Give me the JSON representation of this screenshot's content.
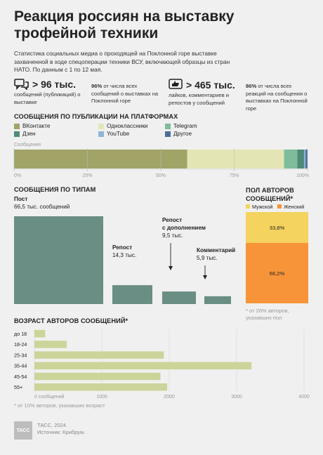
{
  "title": "Реакция россиян на выставку трофейной техники",
  "lead": "Статистика социальных медиа о проходящей на Поклонной горе выставке захваченной в ходе спецоперации техники ВСУ, включающей образцы из стран НАТО. По данным с 1 по 12 мая.",
  "stats": [
    {
      "icon": "chat-bubbles-icon",
      "big": "> 96 тыс.",
      "text": "сообщений (публикаций) о выставке"
    },
    {
      "pct": "96%",
      "text": "от числа всех сообщений о выставках на Поклонной горе"
    },
    {
      "icon": "thumbs-up-icon",
      "big": "> 465 тыс.",
      "text": "лайков, комментариев и репостов у сообщений"
    },
    {
      "pct": "86%",
      "text": "от числа всех реакций на сообщения о выставках на Поклонной горе"
    }
  ],
  "platforms": {
    "heading": "СООБЩЕНИЯ ПО ПУБЛИКАЦИИ НА ПЛАТФОРМАХ",
    "bar_label": "Сообщения",
    "ticks": [
      "0%",
      "25%",
      "50%",
      "75%",
      "100%"
    ]
  },
  "types": {
    "heading": "СООБЩЕНИЯ ПО ТИПАМ"
  },
  "gender": {
    "heading": "ПОЛ АВТОРОВ СООБЩЕНИЙ*",
    "note": "* от 26% авторов, указавших пол"
  },
  "age": {
    "heading": "ВОЗРАСТ АВТОРОВ СООБЩЕНИЙ*",
    "axis_unit": "0 сообщений",
    "note": "* от 10% авторов, указавших возраст"
  },
  "footer": {
    "logo": "ТАСС",
    "line1": "ТАСС, 2024.",
    "line2": "Источник: Крибрум."
  },
  "chart_data": [
    {
      "type": "bar",
      "orientation": "horizontal-stacked",
      "title": "СООБЩЕНИЯ ПО ПУБЛИКАЦИИ НА ПЛАТФОРМАХ",
      "xlabel": "Сообщения",
      "xlim": [
        0,
        100
      ],
      "unit": "%",
      "series": [
        {
          "name": "ВКонтакте",
          "value": 59,
          "color": "#a1a466"
        },
        {
          "name": "Одноклассники",
          "value": 33,
          "color": "#e3e6b4"
        },
        {
          "name": "Telegram",
          "value": 4.5,
          "color": "#7fbc9b"
        },
        {
          "name": "Дзен",
          "value": 2.3,
          "color": "#4e8a78"
        },
        {
          "name": "YouTube",
          "value": 0.5,
          "color": "#8fb6d6"
        },
        {
          "name": "Другое",
          "value": 0.7,
          "color": "#4d6e9c"
        }
      ]
    },
    {
      "type": "bar",
      "title": "СООБЩЕНИЯ ПО ТИПАМ",
      "categories": [
        "Пост",
        "Репост",
        "Репост с дополнением",
        "Комментарий"
      ],
      "values": [
        66.5,
        14.3,
        9.5,
        5.9
      ],
      "labels": [
        "66,5 тыс. сообщений",
        "14,3 тыс.",
        "9,5 тыс.",
        "5,9 тыс."
      ],
      "color": "#6a8e84"
    },
    {
      "type": "bar",
      "orientation": "vertical-stacked",
      "title": "ПОЛ АВТОРОВ СООБЩЕНИЙ*",
      "series": [
        {
          "name": "Мужской",
          "value": 33.8,
          "label": "33,8%",
          "color": "#f4d35e"
        },
        {
          "name": "Женский",
          "value": 66.2,
          "label": "66,2%",
          "color": "#f7943a"
        }
      ]
    },
    {
      "type": "bar",
      "orientation": "horizontal",
      "title": "ВОЗРАСТ АВТОРОВ СООБЩЕНИЙ*",
      "categories": [
        "до 18",
        "18-24",
        "25-34",
        "35-44",
        "45-54",
        "55+"
      ],
      "values": [
        160,
        480,
        1920,
        3220,
        1870,
        1970
      ],
      "xlim": [
        0,
        4000
      ],
      "ticks": [
        "0 сообщений",
        "1000",
        "2000",
        "3000",
        "4000"
      ],
      "color": "#ccd49a"
    }
  ]
}
